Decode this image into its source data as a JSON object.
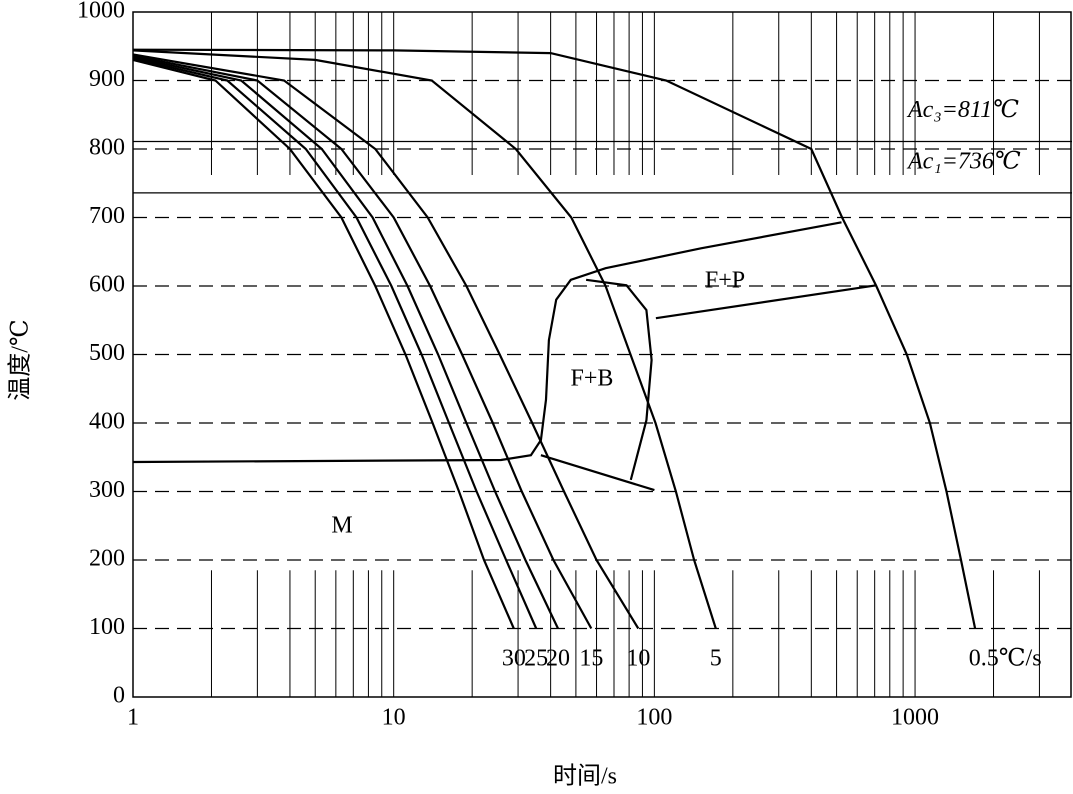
{
  "chart_data": {
    "type": "line",
    "x_label": "时间/s",
    "y_label": "温度/℃",
    "log_x": true,
    "color": "#000000",
    "xlim": [
      1,
      4000
    ],
    "ylim": [
      0,
      1000
    ],
    "xticks": [
      1,
      10,
      100,
      1000
    ],
    "xminorticks": [
      2,
      3,
      4,
      5,
      6,
      7,
      8,
      9,
      20,
      30,
      40,
      50,
      60,
      70,
      80,
      90,
      200,
      300,
      400,
      500,
      600,
      700,
      800,
      900,
      2000,
      3000
    ],
    "yticks": [
      0,
      100,
      200,
      300,
      400,
      500,
      600,
      700,
      800,
      900,
      1000
    ],
    "grid": true,
    "series": [
      {
        "name": "30",
        "x": [
          1,
          2.07,
          4.0,
          6.3,
          8.5,
          11.1,
          14.1,
          17.8,
          22.2,
          28.9
        ],
        "values": [
          930,
          900,
          800,
          700,
          600,
          500,
          400,
          300,
          200,
          100
        ]
      },
      {
        "name": "25",
        "x": [
          1,
          2.3,
          4.6,
          7.2,
          9.8,
          12.8,
          16.3,
          20.8,
          27,
          35.2
        ],
        "values": [
          932,
          900,
          800,
          700,
          600,
          500,
          400,
          300,
          200,
          100
        ]
      },
      {
        "name": "20",
        "x": [
          1,
          2.6,
          5.3,
          8.3,
          11.3,
          14.8,
          19,
          24.5,
          32,
          42.7
        ],
        "values": [
          934,
          900,
          800,
          700,
          600,
          500,
          400,
          300,
          200,
          100
        ]
      },
      {
        "name": "15",
        "x": [
          1,
          3.0,
          6.3,
          10,
          13.8,
          18.3,
          24,
          31,
          41,
          57.3
        ],
        "values": [
          936,
          900,
          800,
          700,
          600,
          500,
          400,
          300,
          200,
          100
        ]
      },
      {
        "name": "10",
        "x": [
          1,
          3.8,
          8.5,
          13.5,
          19,
          25.5,
          34,
          45,
          60,
          86.8
        ],
        "values": [
          938,
          900,
          800,
          700,
          600,
          500,
          400,
          300,
          200,
          100
        ]
      },
      {
        "name": "5",
        "x": [
          1,
          5,
          14,
          29.4,
          48,
          65,
          81,
          101,
          121,
          142,
          172
        ],
        "values": [
          944,
          930,
          900,
          800,
          700,
          600,
          500,
          400,
          300,
          200,
          100
        ]
      },
      {
        "name": "0.5℃/s",
        "x": [
          1,
          10,
          40,
          111,
          400,
          525,
          710,
          930,
          1140,
          1320,
          1500,
          1700
        ],
        "values": [
          945,
          944,
          940,
          900,
          800,
          700,
          600,
          500,
          400,
          300,
          200,
          100
        ]
      }
    ],
    "boundaries": [
      {
        "x": [
          1,
          25.8,
          33.6,
          36.7,
          38.4,
          39.4,
          42.0,
          47.8,
          65,
          151,
          522
        ],
        "values": [
          343,
          346,
          353,
          375,
          434,
          521,
          580,
          609,
          626,
          655,
          693
        ]
      },
      {
        "x": [
          54.7,
          78.2,
          93.2,
          97.6,
          93.2,
          81.2
        ],
        "values": [
          609,
          601,
          565,
          492,
          404,
          317
        ]
      },
      {
        "x": [
          101.4,
          710
        ],
        "values": [
          553,
          601
        ]
      },
      {
        "x": [
          36.7,
          100
        ],
        "values": [
          353,
          302
        ]
      }
    ],
    "reference_lines": [
      {
        "value": 811,
        "label": "Ac₃=811℃"
      },
      {
        "value": 736,
        "label": "Ac₁=736℃"
      }
    ],
    "annotations": [
      "F+P",
      "F+B",
      "M"
    ]
  }
}
